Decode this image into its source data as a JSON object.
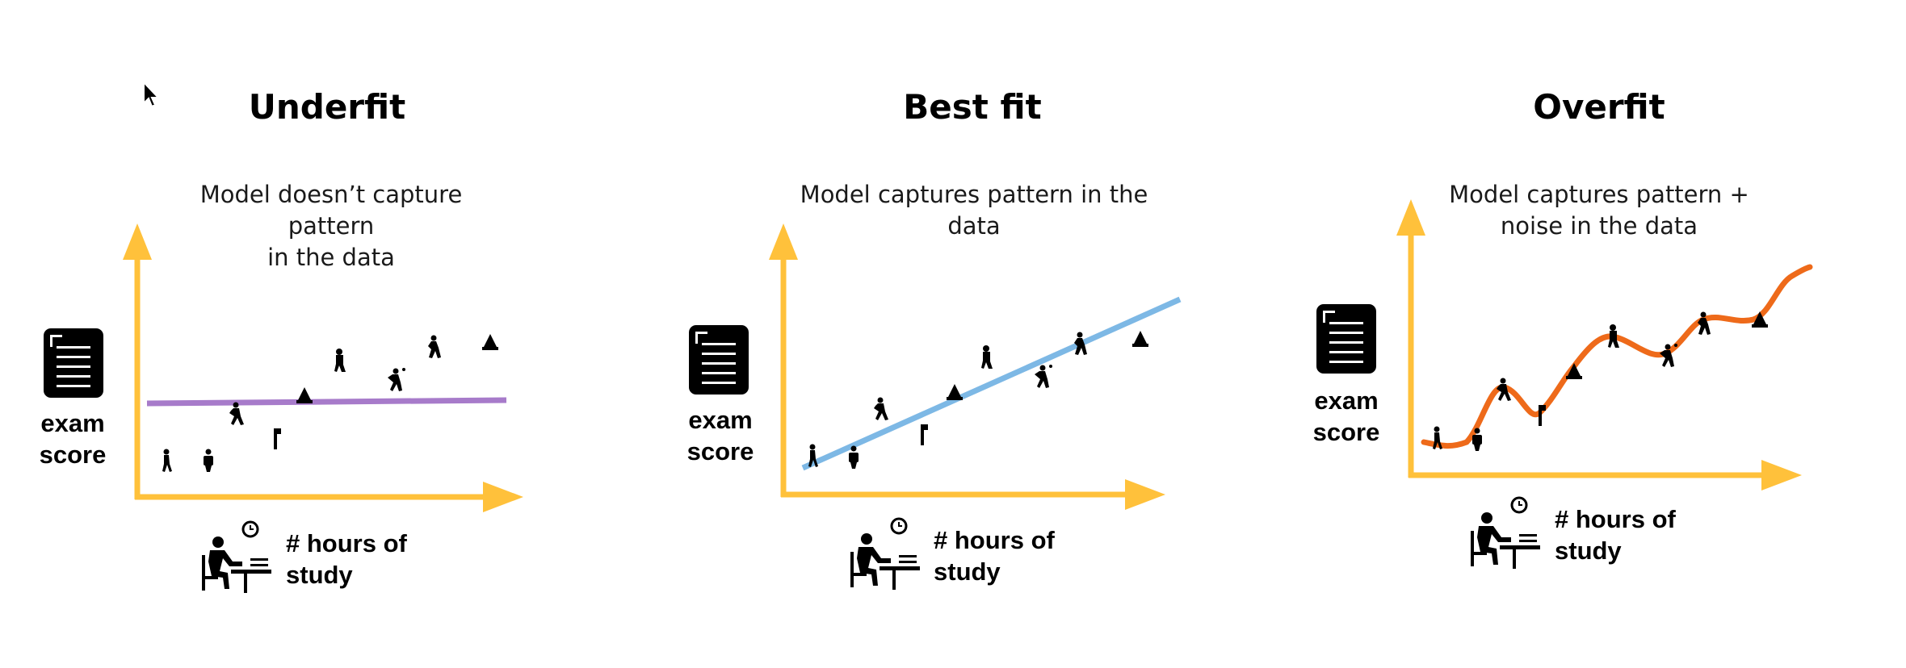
{
  "icons": {
    "cursor": "mouse-pointer-icon",
    "document": "exam-document-icon",
    "student": "student-studying-at-desk-icon",
    "point": "person-figure-icon"
  },
  "colors": {
    "axis": "#FFC13B",
    "underfit_line": "#A77BCA",
    "bestfit_line": "#7DB8E5",
    "overfit_line": "#EE6A1A"
  },
  "panels": [
    {
      "title": "Underfit",
      "caption_line1": "Model doesn’t capture pattern",
      "caption_line2": "in the data",
      "ylabel_line1": "exam",
      "ylabel_line2": "score",
      "xlabel_line1": "# hours of",
      "xlabel_line2": "study"
    },
    {
      "title": "Best fit",
      "caption_line1": "Model captures pattern in the",
      "caption_line2": "data",
      "ylabel_line1": "exam",
      "ylabel_line2": "score",
      "xlabel_line1": "# hours of",
      "xlabel_line2": "study"
    },
    {
      "title": "Overfit",
      "caption_line1": "Model captures pattern +",
      "caption_line2": "noise in the data",
      "ylabel_line1": "exam",
      "ylabel_line2": "score",
      "xlabel_line1": "# hours of",
      "xlabel_line2": "study"
    }
  ]
}
